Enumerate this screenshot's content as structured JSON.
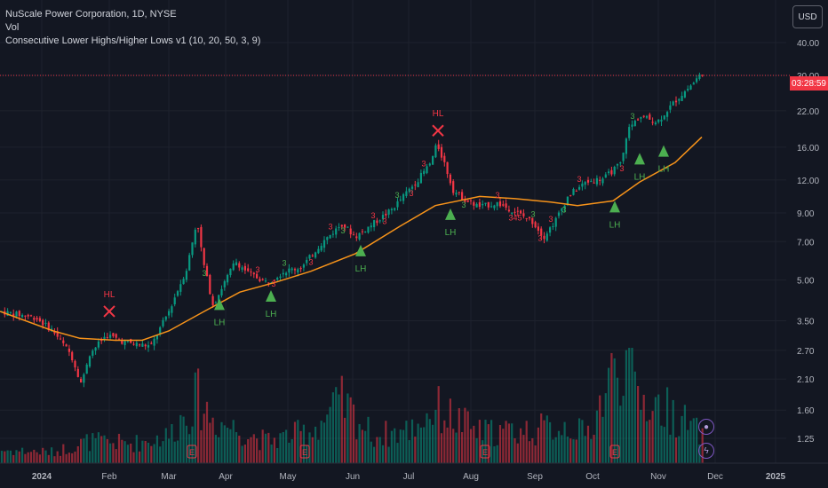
{
  "legend": {
    "title": "NuScale Power Corporation, 1D, NYSE",
    "vol": "Vol",
    "indicator": "Consecutive Lower Highs/Higher Lows v1 (10, 20, 50, 3, 9)"
  },
  "currency": "USD",
  "price_tag": "03:28:59",
  "colors": {
    "up": "#089981",
    "down": "#f23645",
    "ma": "#f7931a",
    "signal_up": "#4caf50",
    "signal_down": "#f23645"
  },
  "icons": {
    "flash": "flash-icon",
    "calendar": "session-icon"
  },
  "chart_data": {
    "type": "candlestick",
    "y_scale": "log",
    "y_ticks": [
      "40.00",
      "30.00",
      "22.00",
      "16.00",
      "12.00",
      "9.00",
      "7.00",
      "5.00",
      "3.50",
      "2.70",
      "2.10",
      "1.60",
      "1.25"
    ],
    "x_ticks": [
      "2024",
      "Feb",
      "Mar",
      "Apr",
      "May",
      "Jun",
      "Jul",
      "Aug",
      "Sep",
      "Oct",
      "Nov",
      "Dec",
      "2025"
    ],
    "trend_path": [
      [
        0,
        3.8
      ],
      [
        60,
        3.2
      ],
      [
        90,
        3.0
      ],
      [
        130,
        2.95
      ],
      [
        160,
        2.95
      ],
      [
        190,
        3.2
      ],
      [
        230,
        3.8
      ],
      [
        270,
        4.5
      ],
      [
        310,
        4.9
      ],
      [
        350,
        5.4
      ],
      [
        400,
        6.3
      ],
      [
        450,
        8.0
      ],
      [
        490,
        9.6
      ],
      [
        540,
        10.4
      ],
      [
        580,
        10.2
      ],
      [
        620,
        9.9
      ],
      [
        650,
        9.6
      ],
      [
        690,
        10.0
      ],
      [
        720,
        11.8
      ],
      [
        760,
        14.0
      ],
      [
        790,
        17.5
      ]
    ],
    "price_path": [
      [
        0,
        3.8
      ],
      [
        20,
        3.7
      ],
      [
        40,
        3.6
      ],
      [
        60,
        3.2
      ],
      [
        80,
        2.6
      ],
      [
        92,
        2.0
      ],
      [
        100,
        2.6
      ],
      [
        120,
        3.1
      ],
      [
        140,
        2.9
      ],
      [
        170,
        2.8
      ],
      [
        190,
        3.8
      ],
      [
        210,
        5.5
      ],
      [
        222,
        8.5
      ],
      [
        228,
        6.0
      ],
      [
        240,
        4.0
      ],
      [
        250,
        4.7
      ],
      [
        265,
        5.9
      ],
      [
        280,
        5.3
      ],
      [
        300,
        4.9
      ],
      [
        320,
        5.4
      ],
      [
        340,
        5.6
      ],
      [
        360,
        6.8
      ],
      [
        385,
        8.2
      ],
      [
        400,
        7.3
      ],
      [
        420,
        8.2
      ],
      [
        440,
        9.2
      ],
      [
        470,
        12.0
      ],
      [
        485,
        14.0
      ],
      [
        492,
        16.5
      ],
      [
        500,
        14.0
      ],
      [
        510,
        11.0
      ],
      [
        525,
        10.0
      ],
      [
        540,
        9.5
      ],
      [
        560,
        9.8
      ],
      [
        580,
        9.1
      ],
      [
        600,
        8.3
      ],
      [
        612,
        7.3
      ],
      [
        625,
        8.4
      ],
      [
        640,
        10.5
      ],
      [
        660,
        11.8
      ],
      [
        680,
        12.2
      ],
      [
        700,
        14.0
      ],
      [
        706,
        18.5
      ],
      [
        720,
        21.0
      ],
      [
        740,
        20.0
      ],
      [
        760,
        24.0
      ],
      [
        780,
        28.0
      ],
      [
        793,
        31.5
      ]
    ],
    "volume_path": [
      [
        0,
        0.12
      ],
      [
        60,
        0.1
      ],
      [
        80,
        0.15
      ],
      [
        100,
        0.2
      ],
      [
        150,
        0.18
      ],
      [
        190,
        0.25
      ],
      [
        222,
        0.6
      ],
      [
        240,
        0.4
      ],
      [
        300,
        0.2
      ],
      [
        350,
        0.3
      ],
      [
        385,
        0.55
      ],
      [
        420,
        0.25
      ],
      [
        460,
        0.3
      ],
      [
        490,
        0.5
      ],
      [
        540,
        0.28
      ],
      [
        600,
        0.3
      ],
      [
        640,
        0.35
      ],
      [
        660,
        0.25
      ],
      [
        700,
        1.0
      ],
      [
        720,
        0.6
      ],
      [
        760,
        0.45
      ],
      [
        790,
        0.25
      ]
    ],
    "earnings_x": [
      216,
      343,
      546,
      692
    ],
    "series_marks": [
      {
        "label": "HL",
        "kind": "x",
        "x": 123,
        "y": 3.8
      },
      {
        "label": "LH",
        "kind": "up",
        "x": 247,
        "y": 4.0
      },
      {
        "label": "LH",
        "kind": "up",
        "x": 305,
        "y": 4.3
      },
      {
        "label": "LH",
        "kind": "up",
        "x": 406,
        "y": 6.4
      },
      {
        "label": "HL",
        "kind": "x",
        "x": 493,
        "y": 18.5
      },
      {
        "label": "LH",
        "kind": "up",
        "x": 507,
        "y": 8.8
      },
      {
        "label": "LH",
        "kind": "up",
        "x": 692,
        "y": 9.4
      },
      {
        "label": "LH",
        "kind": "up",
        "x": 720,
        "y": 14.3
      },
      {
        "label": "LH",
        "kind": "up",
        "x": 747,
        "y": 15.3
      }
    ],
    "count_labels": [
      "3",
      "3",
      "3",
      "3",
      "3",
      "3",
      "3",
      "3",
      "3",
      "3",
      "3",
      "3",
      "3",
      "3",
      "345",
      "3",
      "3",
      "3",
      "3",
      "3",
      "3",
      "3"
    ],
    "current_price": 30.0
  }
}
